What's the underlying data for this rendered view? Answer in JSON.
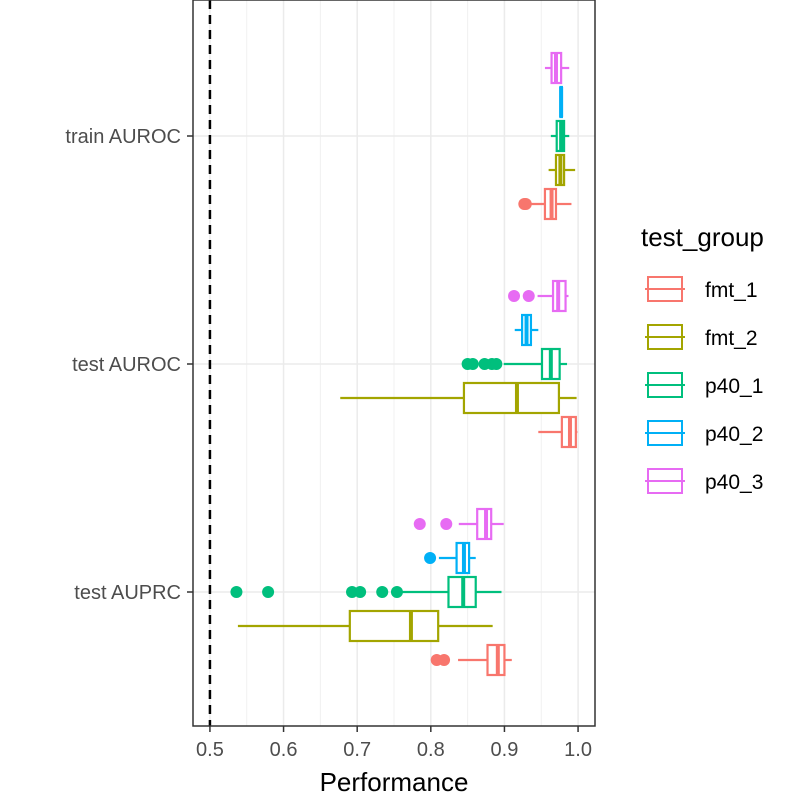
{
  "chart_data": {
    "type": "boxplot",
    "orientation": "horizontal",
    "xlabel": "Performance",
    "ylabel": "",
    "xlim": [
      0.477,
      1.023
    ],
    "x_ticks": [
      "0.5",
      "0.6",
      "0.7",
      "0.8",
      "0.9",
      "1.0"
    ],
    "x_tick_values": [
      0.5,
      0.6,
      0.7,
      0.8,
      0.9,
      1.0
    ],
    "reference_line": {
      "x": 0.5,
      "style": "dashed",
      "color": "#000000"
    },
    "grid": true,
    "legend": {
      "title": "test_group",
      "placement": "right",
      "entries": [
        "fmt_1",
        "fmt_2",
        "p40_1",
        "p40_2",
        "p40_3"
      ]
    },
    "categories": [
      "test AUPRC",
      "test AUROC",
      "train AUROC"
    ],
    "series": [
      {
        "name": "fmt_1",
        "color": "#F8766D",
        "boxes": [
          {
            "category": "test AUPRC",
            "whisker_low": 0.837,
            "q1": 0.877,
            "median": 0.891,
            "q3": 0.9,
            "whisker_high": 0.91,
            "outliers": [
              0.808,
              0.818
            ]
          },
          {
            "category": "test AUROC",
            "whisker_low": 0.946,
            "q1": 0.978,
            "median": 0.989,
            "q3": 0.997,
            "whisker_high": 0.999,
            "outliers": []
          },
          {
            "category": "train AUROC",
            "whisker_low": 0.933,
            "q1": 0.955,
            "median": 0.964,
            "q3": 0.97,
            "whisker_high": 0.991,
            "outliers": [
              0.927,
              0.929
            ]
          }
        ]
      },
      {
        "name": "fmt_2",
        "color": "#A3A500",
        "boxes": [
          {
            "category": "test AUPRC",
            "whisker_low": 0.538,
            "q1": 0.69,
            "median": 0.773,
            "q3": 0.81,
            "whisker_high": 0.884,
            "outliers": []
          },
          {
            "category": "test AUROC",
            "whisker_low": 0.677,
            "q1": 0.845,
            "median": 0.917,
            "q3": 0.974,
            "whisker_high": 0.998,
            "outliers": []
          },
          {
            "category": "train AUROC",
            "whisker_low": 0.96,
            "q1": 0.97,
            "median": 0.976,
            "q3": 0.981,
            "whisker_high": 0.996,
            "outliers": []
          }
        ]
      },
      {
        "name": "p40_1",
        "color": "#00BF7D",
        "boxes": [
          {
            "category": "test AUPRC",
            "whisker_low": 0.758,
            "q1": 0.824,
            "median": 0.844,
            "q3": 0.861,
            "whisker_high": 0.896,
            "outliers": [
              0.536,
              0.579,
              0.693,
              0.704,
              0.734,
              0.754
            ]
          },
          {
            "category": "test AUROC",
            "whisker_low": 0.899,
            "q1": 0.951,
            "median": 0.963,
            "q3": 0.975,
            "whisker_high": 0.985,
            "outliers": [
              0.85,
              0.857,
              0.873,
              0.883,
              0.889
            ]
          },
          {
            "category": "train AUROC",
            "whisker_low": 0.963,
            "q1": 0.971,
            "median": 0.977,
            "q3": 0.981,
            "whisker_high": 0.988,
            "outliers": []
          }
        ]
      },
      {
        "name": "p40_2",
        "color": "#00B0F6",
        "boxes": [
          {
            "category": "test AUPRC",
            "whisker_low": 0.811,
            "q1": 0.835,
            "median": 0.845,
            "q3": 0.852,
            "whisker_high": 0.861,
            "outliers": [
              0.799
            ]
          },
          {
            "category": "test AUROC",
            "whisker_low": 0.914,
            "q1": 0.924,
            "median": 0.93,
            "q3": 0.936,
            "whisker_high": 0.946,
            "outliers": []
          },
          {
            "category": "train AUROC",
            "whisker_low": 0.975,
            "q1": 0.976,
            "median": 0.977,
            "q3": 0.978,
            "whisker_high": 0.979,
            "outliers": []
          }
        ]
      },
      {
        "name": "p40_3",
        "color": "#E76BF3",
        "boxes": [
          {
            "category": "test AUPRC",
            "whisker_low": 0.838,
            "q1": 0.863,
            "median": 0.875,
            "q3": 0.882,
            "whisker_high": 0.899,
            "outliers": [
              0.785,
              0.821
            ]
          },
          {
            "category": "test AUROC",
            "whisker_low": 0.945,
            "q1": 0.966,
            "median": 0.973,
            "q3": 0.983,
            "whisker_high": 0.987,
            "outliers": [
              0.913,
              0.933
            ]
          },
          {
            "category": "train AUROC",
            "whisker_low": 0.955,
            "q1": 0.964,
            "median": 0.97,
            "q3": 0.977,
            "whisker_high": 0.988,
            "outliers": []
          }
        ]
      }
    ]
  }
}
